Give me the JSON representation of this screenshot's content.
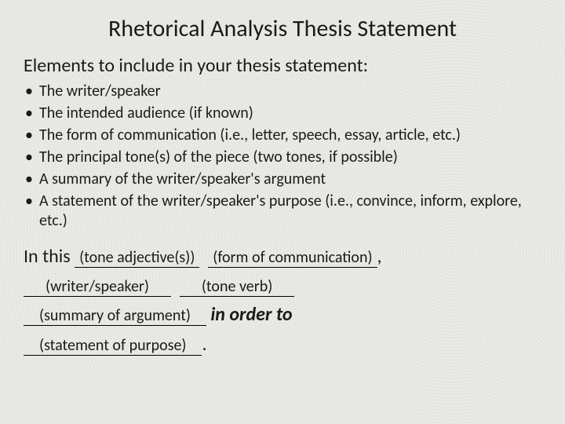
{
  "title": "Rhetorical Analysis Thesis Statement",
  "subtitle": "Elements to include in your thesis statement:",
  "bullets": [
    "The writer/speaker",
    "The intended audience (if known)",
    "The form of communication (i.e., letter, speech, essay, article, etc.)",
    "The principal tone(s) of the piece (two tones, if possible)",
    "A summary of the writer/speaker's argument",
    "A statement of the writer/speaker's purpose (i.e., convince, inform, explore, etc.)"
  ],
  "template": {
    "lead": "In this",
    "blank1": "(tone adjective(s))",
    "blank2": "(form of communication)",
    "sep1": ",",
    "blank3": "(writer/speaker)",
    "blank4": "(tone verb)",
    "blank5": "(summary of argument)",
    "connector": "in order to",
    "blank6": "(statement of purpose)",
    "end": "."
  },
  "style": {
    "background_color": "#e8e8e4",
    "text_color": "#1a1a1a",
    "title_fontsize": 30,
    "subtitle_fontsize": 24,
    "bullet_fontsize": 20,
    "template_fontsize": 24,
    "blank_fontsize": 20,
    "font_family": "Calibri"
  }
}
